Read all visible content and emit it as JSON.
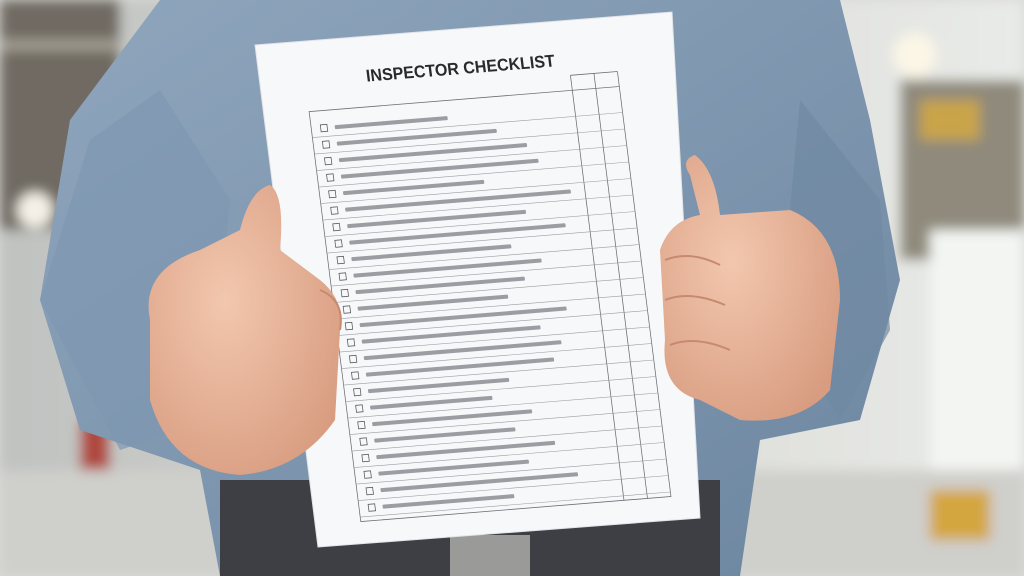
{
  "document": {
    "title": "INSPECTOR CHECKLIST"
  }
}
